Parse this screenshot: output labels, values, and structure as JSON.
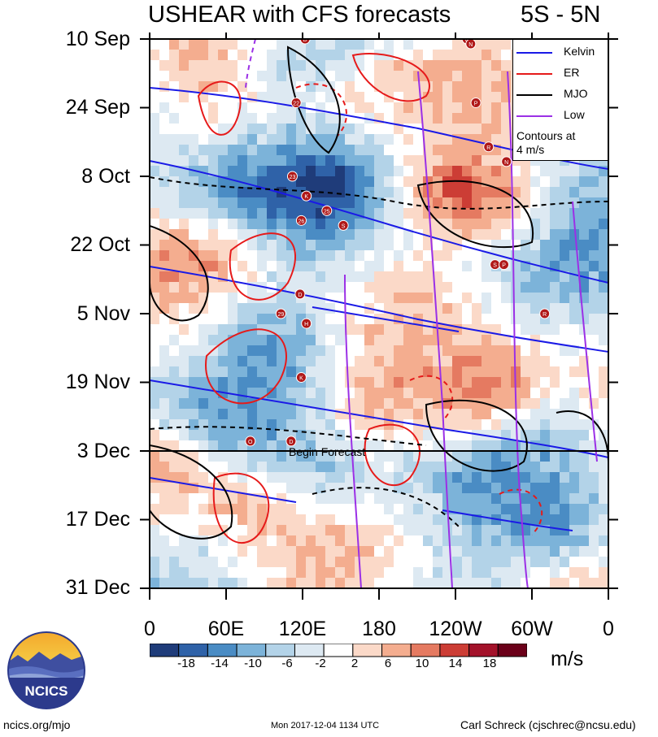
{
  "title_left": "USHEAR with CFS forecasts",
  "title_right": "5S - 5N",
  "begin_forecast_label": "Begin Forecast",
  "units": "m/s",
  "logo_text": "NCICS",
  "footer": {
    "left": "ncics.org/mjo",
    "center": "Mon 2017-12-04 1134 UTC",
    "right": "Carl Schreck (cjschrec@ncsu.edu)"
  },
  "legend": {
    "items": [
      {
        "label": "Kelvin",
        "color": "#1a1ae6"
      },
      {
        "label": "ER",
        "color": "#e61a1a"
      },
      {
        "label": "MJO",
        "color": "#000000"
      },
      {
        "label": "Low",
        "color": "#9b30e6"
      }
    ],
    "note_line1": "Contours at",
    "note_line2": "4 m/s"
  },
  "colorbar": {
    "colors": [
      "#1f3c7a",
      "#2f62a8",
      "#4a8cc4",
      "#7cb3d9",
      "#b3d3e8",
      "#dde9f2",
      "#ffffff",
      "#fbd9c8",
      "#f4ad8f",
      "#e57a61",
      "#cc3d35",
      "#a3122a",
      "#6b0019"
    ],
    "tick_labels": [
      "-18",
      "-14",
      "-10",
      "-6",
      "-2",
      "2",
      "6",
      "10",
      "14",
      "18"
    ]
  },
  "chart_data": {
    "type": "heatmap",
    "variable": "USHEAR",
    "y_tick_labels": [
      "10 Sep",
      "24 Sep",
      "8 Oct",
      "22 Oct",
      "5 Nov",
      "19 Nov",
      "3 Dec",
      "17 Dec",
      "31 Dec"
    ],
    "x_tick_labels": [
      "0",
      "60E",
      "120E",
      "180",
      "120W",
      "60W",
      "0"
    ],
    "x_range_deg_east": [
      0,
      360
    ],
    "forecast_start": "3 Dec",
    "contour_interval": "4 m/s",
    "filters": [
      "Kelvin",
      "ER",
      "MJO",
      "Low"
    ],
    "tc_markers": [
      {
        "label": "D",
        "lon": 122,
        "date": "10 Sep"
      },
      {
        "label": "C",
        "lon": 249,
        "date": "10 Sep"
      },
      {
        "label": "N",
        "lon": 252,
        "date": "11 Sep"
      },
      {
        "label": "22",
        "lon": 115,
        "date": "23 Sep"
      },
      {
        "label": "P",
        "lon": 256,
        "date": "23 Sep"
      },
      {
        "label": "R",
        "lon": 266,
        "date": "2 Oct"
      },
      {
        "label": "N",
        "lon": 280,
        "date": "5 Oct"
      },
      {
        "label": "23",
        "lon": 112,
        "date": "8 Oct"
      },
      {
        "label": "K",
        "lon": 123,
        "date": "12 Oct"
      },
      {
        "label": "25",
        "lon": 139,
        "date": "15 Oct"
      },
      {
        "label": "26",
        "lon": 119,
        "date": "17 Oct"
      },
      {
        "label": "S",
        "lon": 152,
        "date": "18 Oct"
      },
      {
        "label": "S",
        "lon": 271,
        "date": "26 Oct"
      },
      {
        "label": "P",
        "lon": 278,
        "date": "26 Oct"
      },
      {
        "label": "D",
        "lon": 118,
        "date": "1 Nov"
      },
      {
        "label": "R",
        "lon": 310,
        "date": "5 Nov"
      },
      {
        "label": "29",
        "lon": 103,
        "date": "5 Nov"
      },
      {
        "label": "H",
        "lon": 123,
        "date": "7 Nov"
      },
      {
        "label": "K",
        "lon": 119,
        "date": "18 Nov"
      },
      {
        "label": "D",
        "lon": 111,
        "date": "1 Dec"
      },
      {
        "label": "O",
        "lon": 79,
        "date": "1 Dec"
      }
    ],
    "colorbar_levels": [
      -18,
      -14,
      -10,
      -6,
      -2,
      2,
      6,
      10,
      14,
      18
    ]
  }
}
